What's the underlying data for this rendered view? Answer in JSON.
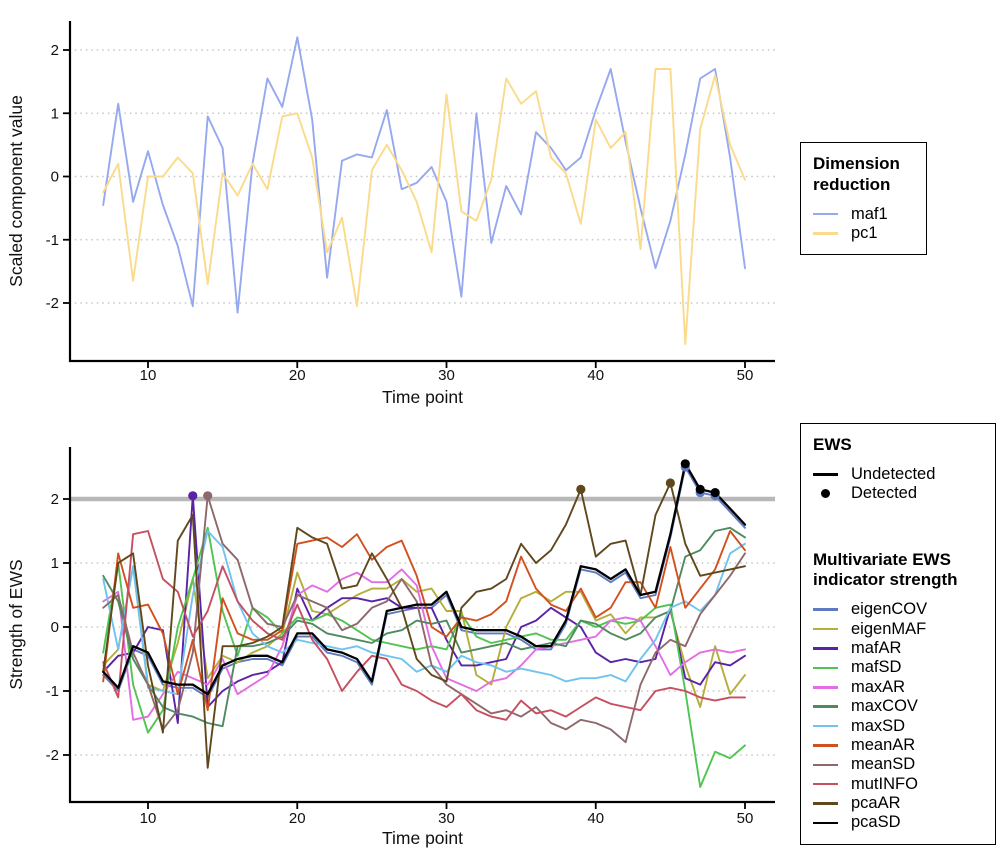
{
  "legends": {
    "dimension": {
      "title": "Dimension reduction"
    },
    "ews": {
      "title": "EWS",
      "items": [
        {
          "label": "Undetected",
          "marker": "line"
        },
        {
          "label": "Detected",
          "marker": "dot"
        }
      ]
    },
    "multivariate": {
      "title": "Multivariate EWS indicator strength"
    }
  },
  "chart_data": [
    {
      "type": "line",
      "panel": "top",
      "xlabel": "Time point",
      "ylabel": "Scaled component value",
      "x": [
        7,
        8,
        9,
        10,
        11,
        12,
        13,
        14,
        15,
        16,
        17,
        18,
        19,
        20,
        21,
        22,
        23,
        24,
        25,
        26,
        27,
        28,
        29,
        30,
        31,
        32,
        33,
        34,
        35,
        36,
        37,
        38,
        39,
        40,
        41,
        42,
        43,
        44,
        45,
        46,
        47,
        48,
        49,
        50
      ],
      "xticks": [
        10,
        20,
        30,
        40,
        50
      ],
      "yticks": [
        -2,
        -1,
        0,
        1,
        2
      ],
      "ylim": [
        -2.85,
        2.55
      ],
      "grid": "dotted-horizontal",
      "grid_color": "#c9c9c9",
      "legend_title": "Dimension reduction",
      "series": [
        {
          "name": "maf1",
          "color": "#96a8ef",
          "values": [
            -0.45,
            1.15,
            -0.4,
            0.4,
            -0.45,
            -1.1,
            -2.05,
            0.95,
            0.45,
            -2.15,
            0.2,
            1.55,
            1.1,
            2.2,
            0.9,
            -1.6,
            0.25,
            0.35,
            0.3,
            1.05,
            -0.2,
            -0.1,
            0.15,
            -0.4,
            -1.9,
            1.0,
            -1.05,
            -0.15,
            -0.6,
            0.7,
            0.45,
            0.1,
            0.3,
            1.05,
            1.7,
            0.55,
            -0.5,
            -1.45,
            -0.7,
            0.35,
            1.55,
            1.7,
            0.3,
            -1.45
          ]
        },
        {
          "name": "pc1",
          "color": "#fbdb8b",
          "values": [
            -0.25,
            0.2,
            -1.65,
            0.0,
            0.0,
            0.3,
            0.05,
            -1.7,
            0.05,
            -0.3,
            0.2,
            -0.2,
            0.95,
            1.0,
            0.3,
            -1.2,
            -0.65,
            -2.05,
            0.1,
            0.5,
            0.1,
            -0.4,
            -1.2,
            1.3,
            -0.55,
            -0.7,
            -0.05,
            1.55,
            1.15,
            1.35,
            0.3,
            0.05,
            -0.75,
            0.9,
            0.45,
            0.7,
            -1.15,
            1.7,
            1.7,
            -2.65,
            0.75,
            1.6,
            0.5,
            -0.05
          ]
        }
      ]
    },
    {
      "type": "line",
      "panel": "bottom",
      "xlabel": "Time point",
      "ylabel": "Strength of EWS",
      "x": [
        7,
        8,
        9,
        10,
        11,
        12,
        13,
        14,
        15,
        16,
        17,
        18,
        19,
        20,
        21,
        22,
        23,
        24,
        25,
        26,
        27,
        28,
        29,
        30,
        31,
        32,
        33,
        34,
        35,
        36,
        37,
        38,
        39,
        40,
        41,
        42,
        43,
        44,
        45,
        46,
        47,
        48,
        49,
        50
      ],
      "xticks": [
        10,
        20,
        30,
        40,
        50
      ],
      "yticks": [
        -2,
        -1,
        0,
        1,
        2
      ],
      "ylim": [
        -2.7,
        2.95
      ],
      "grid": "dotted-horizontal",
      "grid_color": "#c9c9c9",
      "threshold": 2,
      "threshold_color": "#b8b8b8",
      "legend_title": "Multivariate EWS indicator strength",
      "series": [
        {
          "name": "eigenCOV",
          "color": "#5d7ac3",
          "values": [
            -0.75,
            -1.0,
            -0.35,
            -0.45,
            -0.9,
            -0.95,
            -0.95,
            -1.1,
            -0.65,
            -0.55,
            -0.5,
            -0.5,
            -0.6,
            -0.15,
            -0.15,
            -0.4,
            -0.45,
            -0.55,
            -0.9,
            0.2,
            0.25,
            0.3,
            0.3,
            0.5,
            -0.05,
            -0.1,
            -0.1,
            -0.1,
            -0.2,
            -0.35,
            -0.35,
            0.05,
            0.9,
            0.85,
            0.7,
            0.85,
            0.45,
            0.5,
            1.4,
            2.5,
            2.1,
            2.05,
            1.8,
            1.55
          ]
        },
        {
          "name": "eigenMAF",
          "color": "#b5ae3a",
          "values": [
            -0.6,
            -0.35,
            0.95,
            -0.9,
            -1.0,
            -0.25,
            0.75,
            -0.8,
            -0.45,
            -0.55,
            -0.4,
            -0.3,
            -0.1,
            0.85,
            0.25,
            0.2,
            0.35,
            0.5,
            0.6,
            0.6,
            0.75,
            0.55,
            0.6,
            0.25,
            0.25,
            -0.75,
            -0.9,
            0.0,
            0.45,
            0.55,
            0.4,
            0.55,
            0.55,
            0.1,
            0.2,
            -0.1,
            0.15,
            0.15,
            0.25,
            -0.6,
            -1.25,
            -0.3,
            -1.05,
            -0.75
          ]
        },
        {
          "name": "mafAR",
          "color": "#5a23a5",
          "values": [
            -0.7,
            -0.45,
            -0.4,
            0.0,
            -0.05,
            -1.5,
            2.05,
            -1.25,
            -1.0,
            -0.85,
            -0.75,
            -0.7,
            -0.55,
            0.6,
            0.1,
            0.3,
            0.45,
            0.45,
            0.4,
            0.45,
            0.3,
            0.3,
            0.3,
            -0.2,
            -0.6,
            -0.6,
            -0.55,
            -0.5,
            0.0,
            0.1,
            0.3,
            0.15,
            0.0,
            -0.4,
            -0.55,
            -0.5,
            -0.55,
            -0.5,
            0.3,
            -0.8,
            -0.9,
            -0.55,
            -0.6,
            -0.45
          ]
        },
        {
          "name": "mafSD",
          "color": "#50c452",
          "values": [
            -0.4,
            1.0,
            -0.9,
            -1.65,
            -1.3,
            0.0,
            0.75,
            1.55,
            0.25,
            -0.45,
            0.3,
            0.15,
            -0.1,
            0.15,
            0.1,
            0.2,
            0.1,
            -0.05,
            -0.2,
            -0.25,
            -0.3,
            -0.35,
            -0.3,
            -0.35,
            0.2,
            -0.15,
            -0.25,
            -0.2,
            -0.15,
            -0.1,
            -0.2,
            -0.2,
            0.1,
            0.0,
            0.1,
            0.05,
            0.1,
            0.3,
            0.35,
            -1.0,
            -2.5,
            -1.95,
            -2.05,
            -1.85
          ]
        },
        {
          "name": "maxAR",
          "color": "#e36ee3",
          "values": [
            0.4,
            0.55,
            -1.45,
            -1.4,
            -1.05,
            -0.7,
            -0.8,
            -0.9,
            -0.5,
            -1.05,
            -0.9,
            -0.75,
            -0.3,
            0.5,
            0.65,
            0.55,
            0.75,
            0.85,
            0.7,
            0.7,
            0.9,
            0.65,
            -0.3,
            -0.8,
            -0.9,
            -1.0,
            -0.85,
            -0.8,
            -0.6,
            -0.35,
            -0.3,
            -0.25,
            -0.2,
            -0.15,
            0.1,
            0.15,
            0.1,
            -0.3,
            -0.75,
            -0.55,
            -0.4,
            -0.35,
            -0.4,
            -0.35
          ]
        },
        {
          "name": "maxCOV",
          "color": "#4f8a61",
          "values": [
            0.8,
            0.4,
            -0.5,
            -0.9,
            -1.25,
            -1.35,
            -1.4,
            -1.5,
            -1.55,
            -0.3,
            -0.3,
            -0.25,
            -0.15,
            0.1,
            0.05,
            -0.1,
            -0.15,
            -0.2,
            -0.25,
            -0.1,
            -0.05,
            0.1,
            0.05,
            0.1,
            -0.4,
            -0.35,
            -0.3,
            -0.25,
            -0.35,
            -0.3,
            -0.25,
            -0.3,
            0.1,
            0.05,
            -0.1,
            -0.2,
            -0.1,
            0.15,
            0.25,
            1.1,
            1.2,
            1.5,
            1.55,
            1.4
          ]
        },
        {
          "name": "maxSD",
          "color": "#70c3ee",
          "values": [
            0.75,
            -0.35,
            0.95,
            -0.95,
            -1.0,
            -1.05,
            0.5,
            1.5,
            1.25,
            0.4,
            -0.1,
            -0.3,
            -0.4,
            -0.2,
            -0.25,
            -0.3,
            -0.35,
            -0.3,
            -0.4,
            -0.45,
            -0.5,
            -0.7,
            -0.6,
            -0.7,
            -0.45,
            -0.55,
            -0.6,
            -0.7,
            -0.65,
            -0.7,
            -0.75,
            -0.85,
            -0.8,
            -0.8,
            -0.75,
            -0.85,
            -0.5,
            -0.2,
            0.3,
            0.4,
            0.25,
            0.5,
            1.15,
            1.3
          ]
        },
        {
          "name": "meanAR",
          "color": "#d2501f",
          "values": [
            -0.85,
            1.15,
            0.3,
            0.35,
            -0.1,
            -1.05,
            -0.2,
            -1.3,
            0.45,
            -0.1,
            -0.2,
            -0.2,
            -0.05,
            1.3,
            1.35,
            1.4,
            1.25,
            1.45,
            1.05,
            1.25,
            1.35,
            0.8,
            0.0,
            -0.15,
            0.15,
            0.1,
            0.2,
            0.4,
            1.1,
            0.6,
            0.35,
            0.25,
            0.6,
            0.15,
            0.3,
            0.7,
            0.7,
            0.3,
            1.25,
            0.3,
            0.6,
            0.9,
            1.5,
            1.2
          ]
        },
        {
          "name": "meanSD",
          "color": "#8e696b",
          "values": [
            0.3,
            0.5,
            -0.4,
            -0.9,
            -1.6,
            -1.3,
            -0.4,
            2.05,
            1.3,
            1.05,
            0.3,
            0.05,
            0.0,
            0.5,
            0.4,
            0.3,
            -0.05,
            0.05,
            0.3,
            0.4,
            0.75,
            0.4,
            -0.6,
            -0.9,
            -1.05,
            -1.2,
            -1.35,
            -1.3,
            -1.4,
            -1.25,
            -1.5,
            -1.6,
            -1.45,
            -1.5,
            -1.6,
            -1.8,
            -0.9,
            -0.4,
            -0.2,
            -0.3,
            0.2,
            0.5,
            0.8,
            1.15
          ]
        },
        {
          "name": "mutINFO",
          "color": "#c64f60",
          "values": [
            -0.55,
            -1.1,
            1.45,
            1.5,
            0.75,
            0.55,
            -0.15,
            0.25,
            0.95,
            0.4,
            0.1,
            -0.1,
            -0.2,
            0.35,
            -0.2,
            -0.5,
            -1.0,
            -0.7,
            -0.45,
            -0.5,
            -0.9,
            -1.0,
            -1.15,
            -1.25,
            -1.05,
            -1.3,
            -1.4,
            -1.45,
            -1.15,
            -1.35,
            -1.3,
            -1.4,
            -1.25,
            -1.1,
            -1.2,
            -1.25,
            -1.3,
            -1.0,
            -0.95,
            -1.0,
            -1.1,
            -1.15,
            -1.1,
            -1.1
          ]
        },
        {
          "name": "pcaAR",
          "color": "#5f481c",
          "values": [
            -0.7,
            1.0,
            1.15,
            -0.6,
            -1.65,
            1.35,
            1.75,
            -2.2,
            -0.3,
            -0.3,
            -0.25,
            -0.15,
            0.0,
            1.55,
            1.4,
            1.3,
            0.6,
            0.65,
            1.15,
            0.75,
            0.3,
            -0.5,
            -0.75,
            -0.85,
            0.3,
            0.55,
            0.6,
            0.75,
            1.3,
            1.0,
            1.2,
            1.6,
            2.15,
            1.1,
            1.3,
            1.35,
            0.5,
            1.75,
            2.25,
            1.3,
            0.8,
            0.85,
            0.9,
            0.95
          ]
        },
        {
          "name": "pcaSD",
          "color": "#000000",
          "values": [
            -0.7,
            -0.95,
            -0.3,
            -0.4,
            -0.85,
            -0.9,
            -0.9,
            -1.05,
            -0.6,
            -0.5,
            -0.45,
            -0.45,
            -0.55,
            -0.1,
            -0.1,
            -0.35,
            -0.4,
            -0.5,
            -0.85,
            0.25,
            0.3,
            0.35,
            0.35,
            0.55,
            0.0,
            -0.05,
            -0.05,
            -0.05,
            -0.15,
            -0.3,
            -0.3,
            0.1,
            0.95,
            0.9,
            0.75,
            0.9,
            0.5,
            0.55,
            1.45,
            2.55,
            2.15,
            2.1,
            1.85,
            1.6
          ]
        }
      ],
      "detected": [
        {
          "series": "mafAR",
          "x": 13
        },
        {
          "series": "meanSD",
          "x": 14
        },
        {
          "series": "pcaAR",
          "x": 39
        },
        {
          "series": "pcaAR",
          "x": 45
        },
        {
          "series": "eigenCOV",
          "x": 46
        },
        {
          "series": "eigenCOV",
          "x": 47
        },
        {
          "series": "eigenCOV",
          "x": 48
        },
        {
          "series": "pcaSD",
          "x": 46
        },
        {
          "series": "pcaSD",
          "x": 47
        },
        {
          "series": "pcaSD",
          "x": 48
        }
      ]
    }
  ]
}
